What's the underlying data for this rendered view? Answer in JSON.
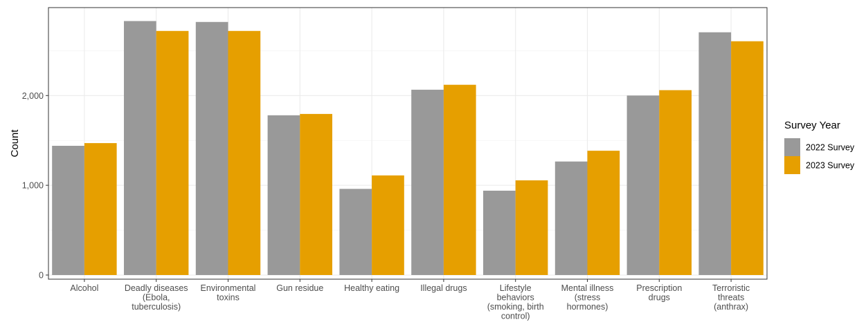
{
  "chart_data": {
    "type": "bar",
    "title": "",
    "xlabel": "",
    "ylabel": "Count",
    "ylim": [
      0,
      2980
    ],
    "yticks": [
      0,
      1000,
      2000
    ],
    "ytick_labels": [
      "0",
      "1,000",
      "2,000"
    ],
    "grid": true,
    "legend_position": "right",
    "legend_title": "Survey Year",
    "categories": [
      [
        "Alcohol"
      ],
      [
        "Deadly diseases",
        "(Ebola,",
        "tuberculosis)"
      ],
      [
        "Environmental",
        "toxins"
      ],
      [
        "Gun residue"
      ],
      [
        "Healthy eating"
      ],
      [
        "Illegal drugs"
      ],
      [
        "Lifestyle",
        "behaviors",
        "(smoking, birth",
        "control)"
      ],
      [
        "Mental illness",
        "(stress",
        "hormones)"
      ],
      [
        "Prescription",
        "drugs"
      ],
      [
        "Terroristic",
        "threats",
        "(anthrax)"
      ]
    ],
    "series": [
      {
        "name": "2022 Survey",
        "color": "#999999",
        "values": [
          1440,
          2830,
          2820,
          1780,
          960,
          2065,
          940,
          1265,
          2000,
          2705
        ]
      },
      {
        "name": "2023 Survey",
        "color": "#E69F00",
        "values": [
          1470,
          2720,
          2720,
          1795,
          1110,
          2120,
          1055,
          1385,
          2060,
          2605
        ]
      }
    ]
  }
}
